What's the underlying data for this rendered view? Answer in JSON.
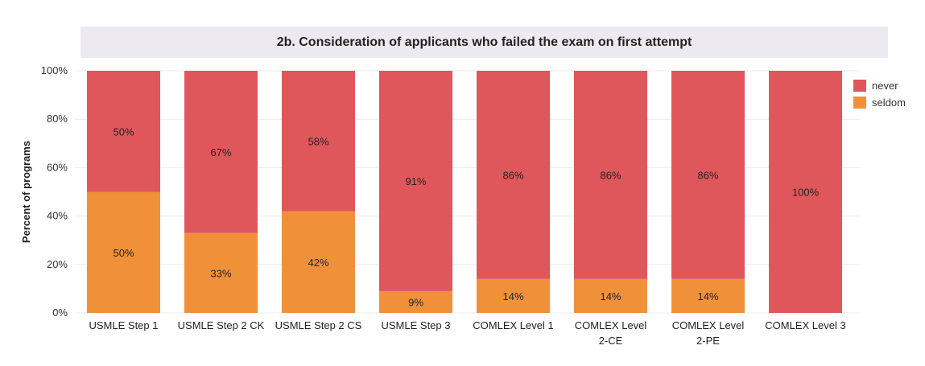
{
  "chart_data": {
    "type": "bar",
    "stacked": true,
    "title": "2b. Consideration of applicants who failed the exam on first attempt",
    "ylabel": "Percent of programs",
    "xlabel": "",
    "ylim": [
      0,
      100
    ],
    "yticks": [
      "0%",
      "20%",
      "40%",
      "60%",
      "80%",
      "100%"
    ],
    "categories": [
      "USMLE Step 1",
      "USMLE Step 2 CK",
      "USMLE Step 2 CS",
      "USMLE Step 3",
      "COMLEX Level 1",
      "COMLEX Level 2-CE",
      "COMLEX Level 2-PE",
      "COMLEX Level 3"
    ],
    "category_lines": [
      [
        "USMLE Step 1"
      ],
      [
        "USMLE Step 2 CK"
      ],
      [
        "USMLE Step 2 CS"
      ],
      [
        "USMLE Step 3"
      ],
      [
        "COMLEX Level 1"
      ],
      [
        "COMLEX Level",
        "2-CE"
      ],
      [
        "COMLEX Level",
        "2-PE"
      ],
      [
        "COMLEX Level 3"
      ]
    ],
    "series": [
      {
        "name": "seldom",
        "color": "#f0913a",
        "values": [
          50,
          33,
          42,
          9,
          14,
          14,
          14,
          0
        ],
        "labels": [
          "50%",
          "33%",
          "42%",
          "9%",
          "14%",
          "14%",
          "14%",
          ""
        ]
      },
      {
        "name": "never",
        "color": "#e0575b",
        "values": [
          50,
          67,
          58,
          91,
          86,
          86,
          86,
          100
        ],
        "labels": [
          "50%",
          "67%",
          "58%",
          "91%",
          "86%",
          "86%",
          "86%",
          "100%"
        ]
      }
    ],
    "legend": {
      "position": "right",
      "entries": [
        {
          "name": "never",
          "color": "#e0575b"
        },
        {
          "name": "seldom",
          "color": "#f0913a"
        }
      ]
    },
    "grid": true
  }
}
